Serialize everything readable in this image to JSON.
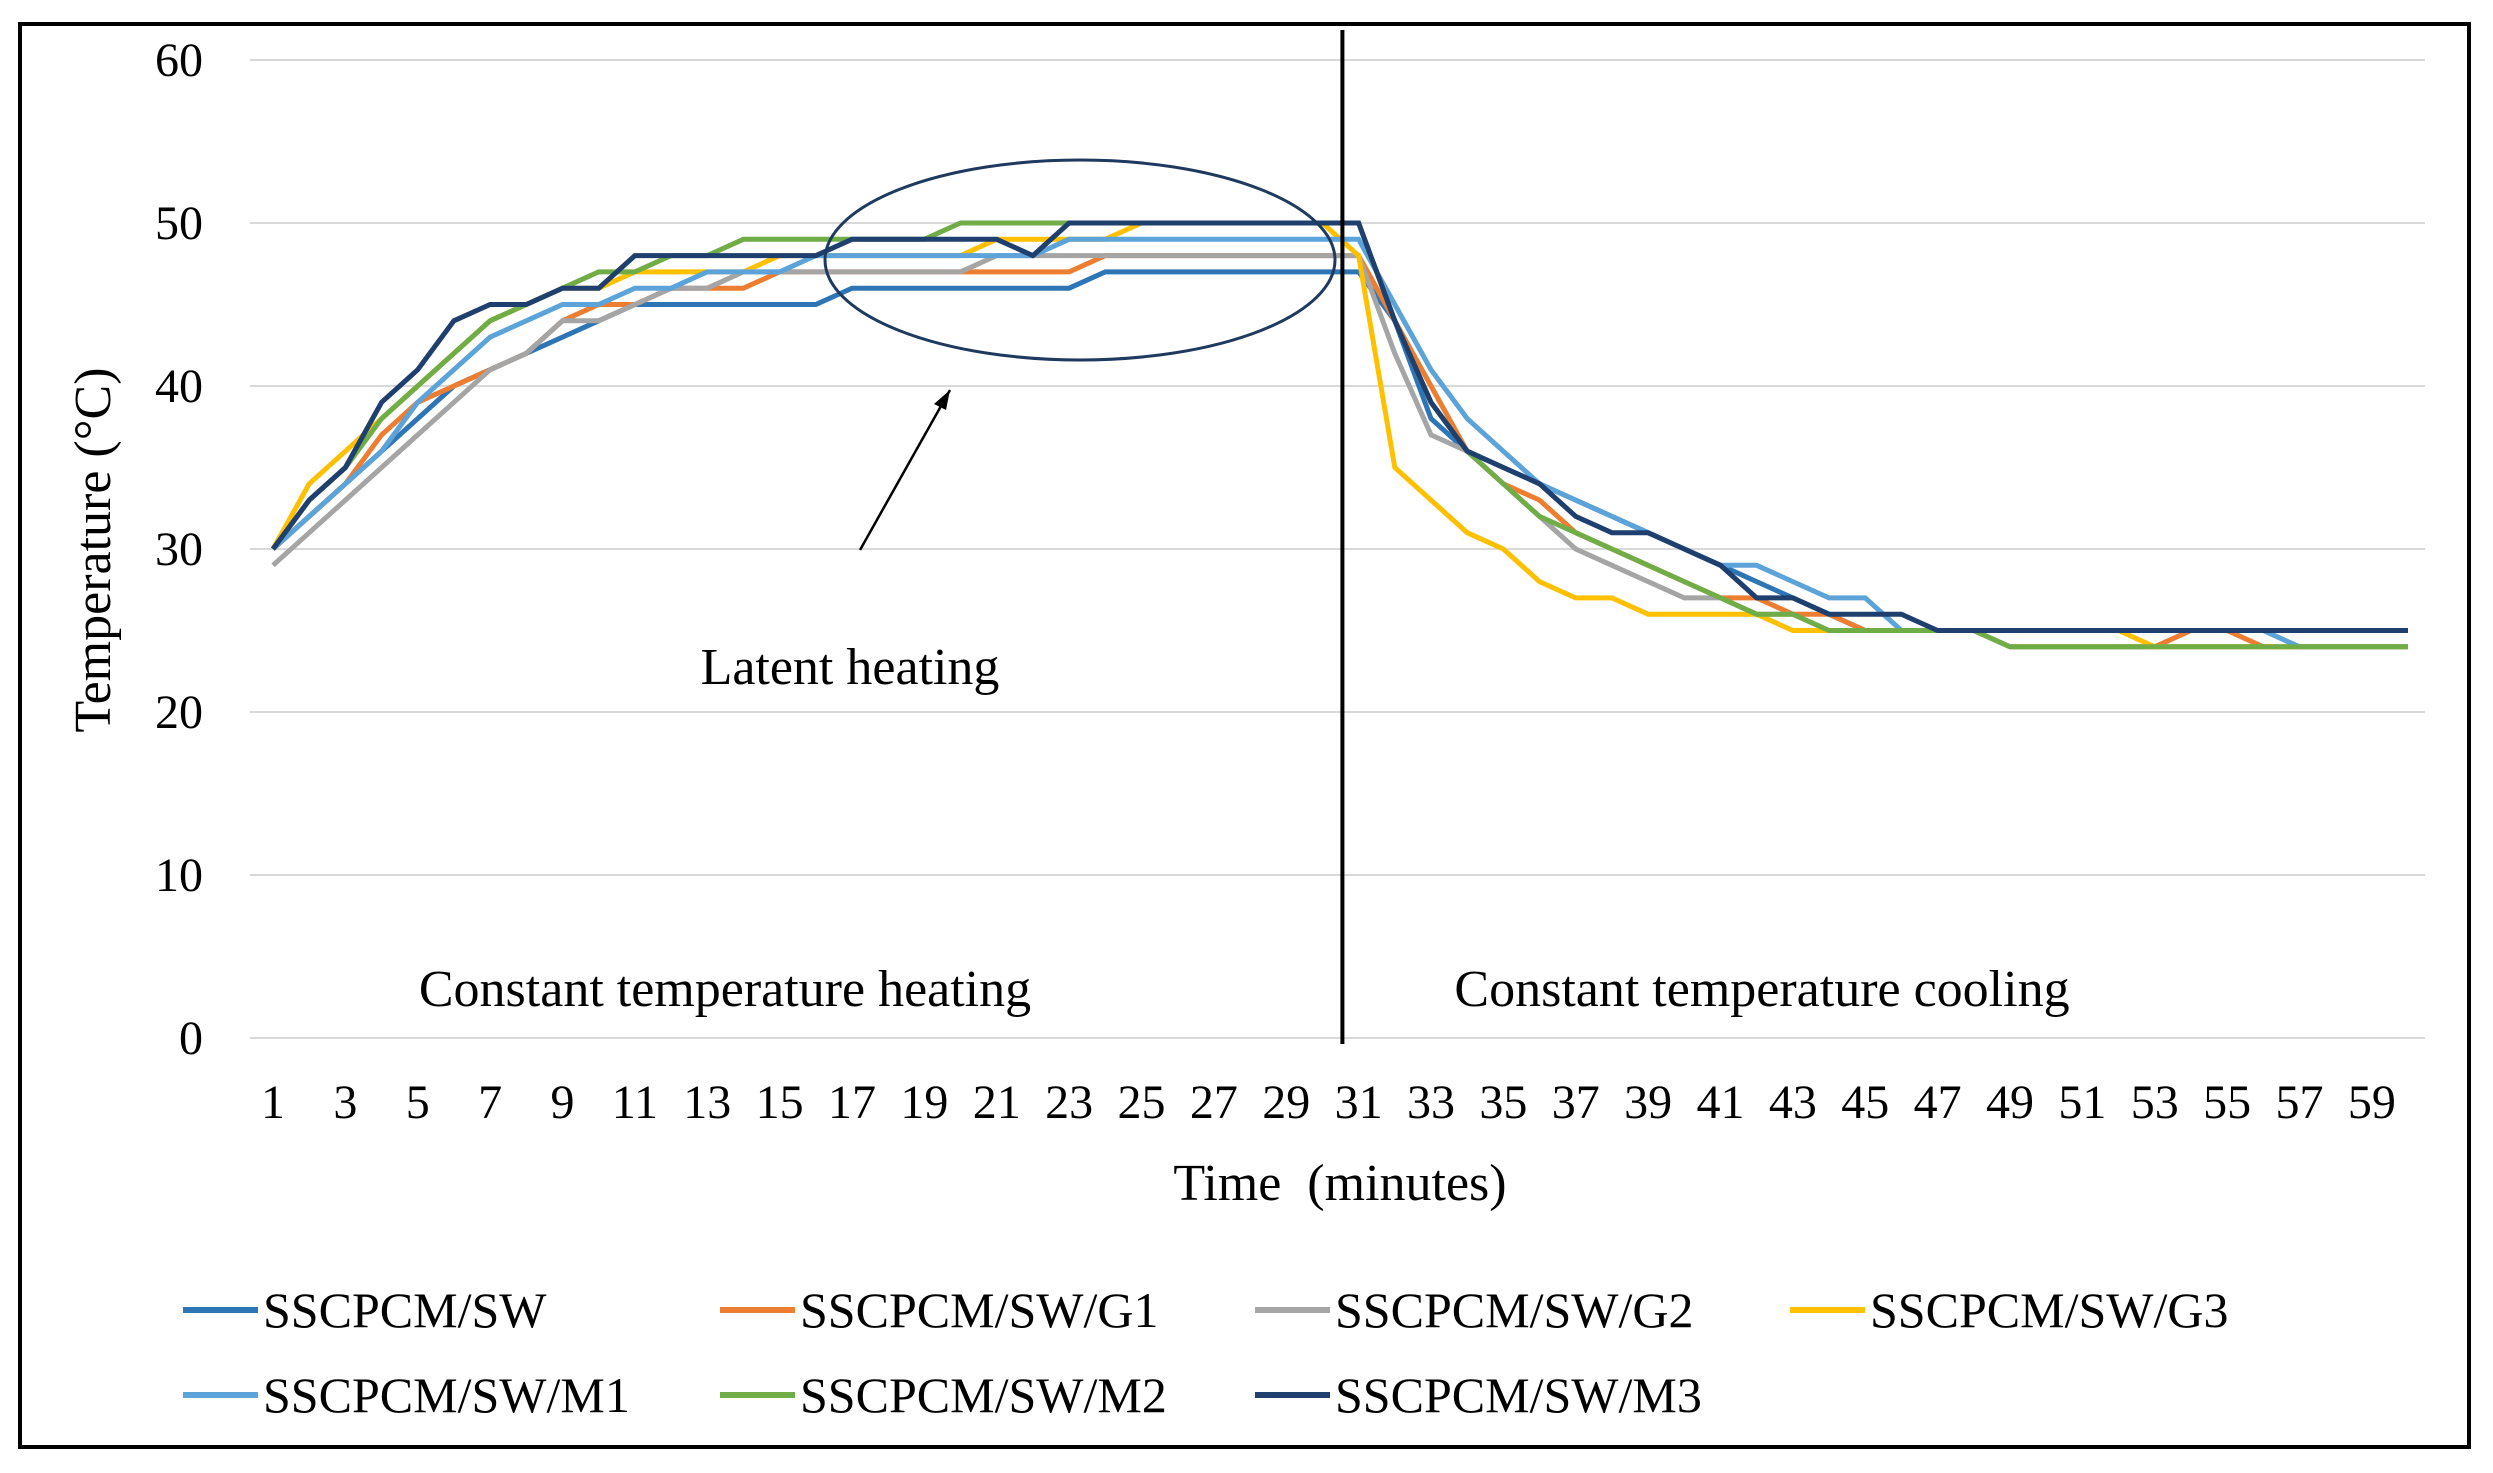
{
  "chart_data": {
    "type": "line",
    "xlabel": "Time  (minutes)",
    "ylabel": "Temperature (°C)",
    "ylim": [
      0,
      60
    ],
    "yticks": [
      0,
      10,
      20,
      30,
      40,
      50,
      60
    ],
    "xlim": [
      1,
      60
    ],
    "xticks": [
      1,
      3,
      5,
      7,
      9,
      11,
      13,
      15,
      17,
      19,
      21,
      23,
      25,
      27,
      29,
      31,
      33,
      35,
      37,
      39,
      41,
      43,
      45,
      47,
      49,
      51,
      53,
      55,
      57,
      59
    ],
    "grid": true,
    "divider_at_minute": 30,
    "legend_position": "bottom",
    "annotations": {
      "heating_region": "Constant temperature heating",
      "cooling_region": "Constant temperature cooling",
      "latent": "Latent heating"
    },
    "series": [
      {
        "name": "SSCPCM/SW",
        "color": "#2E75B6",
        "values": [
          30,
          32,
          34,
          36,
          38,
          40,
          41,
          42,
          43,
          44,
          45,
          45,
          45,
          45,
          45,
          45,
          46,
          46,
          46,
          46,
          46,
          46,
          46,
          47,
          47,
          47,
          47,
          47,
          47,
          47,
          47,
          44,
          38,
          36,
          35,
          34,
          33,
          32,
          31,
          30,
          29,
          28,
          27,
          26,
          25,
          25,
          25,
          25,
          25,
          25,
          25,
          25,
          25,
          25,
          25,
          25,
          25,
          25,
          25,
          25
        ]
      },
      {
        "name": "SSCPCM/SW/G1",
        "color": "#ED7D31",
        "values": [
          30,
          32,
          34,
          37,
          39,
          40,
          41,
          42,
          44,
          45,
          45,
          46,
          46,
          46,
          47,
          47,
          47,
          47,
          47,
          47,
          47,
          47,
          47,
          48,
          48,
          48,
          48,
          48,
          48,
          48,
          48,
          44,
          40,
          36,
          34,
          33,
          31,
          30,
          29,
          28,
          27,
          27,
          26,
          26,
          25,
          25,
          25,
          25,
          24,
          24,
          24,
          24,
          24,
          25,
          25,
          24,
          24,
          24,
          24,
          24
        ]
      },
      {
        "name": "SSCPCM/SW/G2",
        "color": "#A5A5A5",
        "values": [
          29,
          31,
          33,
          35,
          37,
          39,
          41,
          42,
          44,
          44,
          45,
          46,
          46,
          47,
          47,
          47,
          47,
          47,
          47,
          47,
          48,
          48,
          48,
          48,
          48,
          48,
          48,
          48,
          48,
          48,
          48,
          42,
          37,
          36,
          34,
          32,
          30,
          29,
          28,
          27,
          27,
          26,
          26,
          25,
          25,
          25,
          25,
          25,
          24,
          24,
          24,
          24,
          24,
          24,
          24,
          24,
          24,
          24,
          24,
          24
        ]
      },
      {
        "name": "SSCPCM/SW/G3",
        "color": "#FFC000",
        "values": [
          30,
          34,
          36,
          38,
          40,
          42,
          44,
          45,
          46,
          46,
          47,
          47,
          47,
          47,
          48,
          48,
          48,
          48,
          48,
          48,
          49,
          49,
          49,
          49,
          50,
          50,
          50,
          50,
          50,
          50,
          48,
          35,
          33,
          31,
          30,
          28,
          27,
          27,
          26,
          26,
          26,
          26,
          25,
          25,
          25,
          25,
          25,
          25,
          25,
          25,
          25,
          25,
          24,
          24,
          24,
          24,
          24,
          24,
          24,
          24
        ]
      },
      {
        "name": "SSCPCM/SW/M1",
        "color": "#5BA3D9",
        "values": [
          30,
          32,
          34,
          36,
          39,
          41,
          43,
          44,
          45,
          45,
          46,
          46,
          47,
          47,
          47,
          48,
          48,
          48,
          48,
          48,
          48,
          48,
          49,
          49,
          49,
          49,
          49,
          49,
          49,
          49,
          49,
          45,
          41,
          38,
          36,
          34,
          33,
          32,
          31,
          30,
          29,
          29,
          28,
          27,
          27,
          25,
          25,
          25,
          25,
          25,
          25,
          25,
          25,
          25,
          25,
          25,
          24,
          24,
          24,
          24
        ]
      },
      {
        "name": "SSCPCM/SW/M2",
        "color": "#70AD47",
        "values": [
          30,
          33,
          35,
          38,
          40,
          42,
          44,
          45,
          46,
          47,
          47,
          48,
          48,
          49,
          49,
          49,
          49,
          49,
          49,
          50,
          50,
          50,
          50,
          50,
          50,
          50,
          50,
          50,
          50,
          50,
          50,
          44,
          39,
          36,
          34,
          32,
          31,
          30,
          29,
          28,
          27,
          26,
          26,
          25,
          25,
          25,
          25,
          25,
          24,
          24,
          24,
          24,
          24,
          24,
          24,
          24,
          24,
          24,
          24,
          24
        ]
      },
      {
        "name": "SSCPCM/SW/M3",
        "color": "#1F3F6E",
        "values": [
          30,
          33,
          35,
          39,
          41,
          44,
          45,
          45,
          46,
          46,
          48,
          48,
          48,
          48,
          48,
          48,
          49,
          49,
          49,
          49,
          49,
          48,
          50,
          50,
          50,
          50,
          50,
          50,
          50,
          50,
          50,
          44,
          39,
          36,
          35,
          34,
          32,
          31,
          31,
          30,
          29,
          27,
          27,
          26,
          26,
          26,
          25,
          25,
          25,
          25,
          25,
          25,
          25,
          25,
          25,
          25,
          25,
          25,
          25,
          25
        ]
      }
    ]
  }
}
